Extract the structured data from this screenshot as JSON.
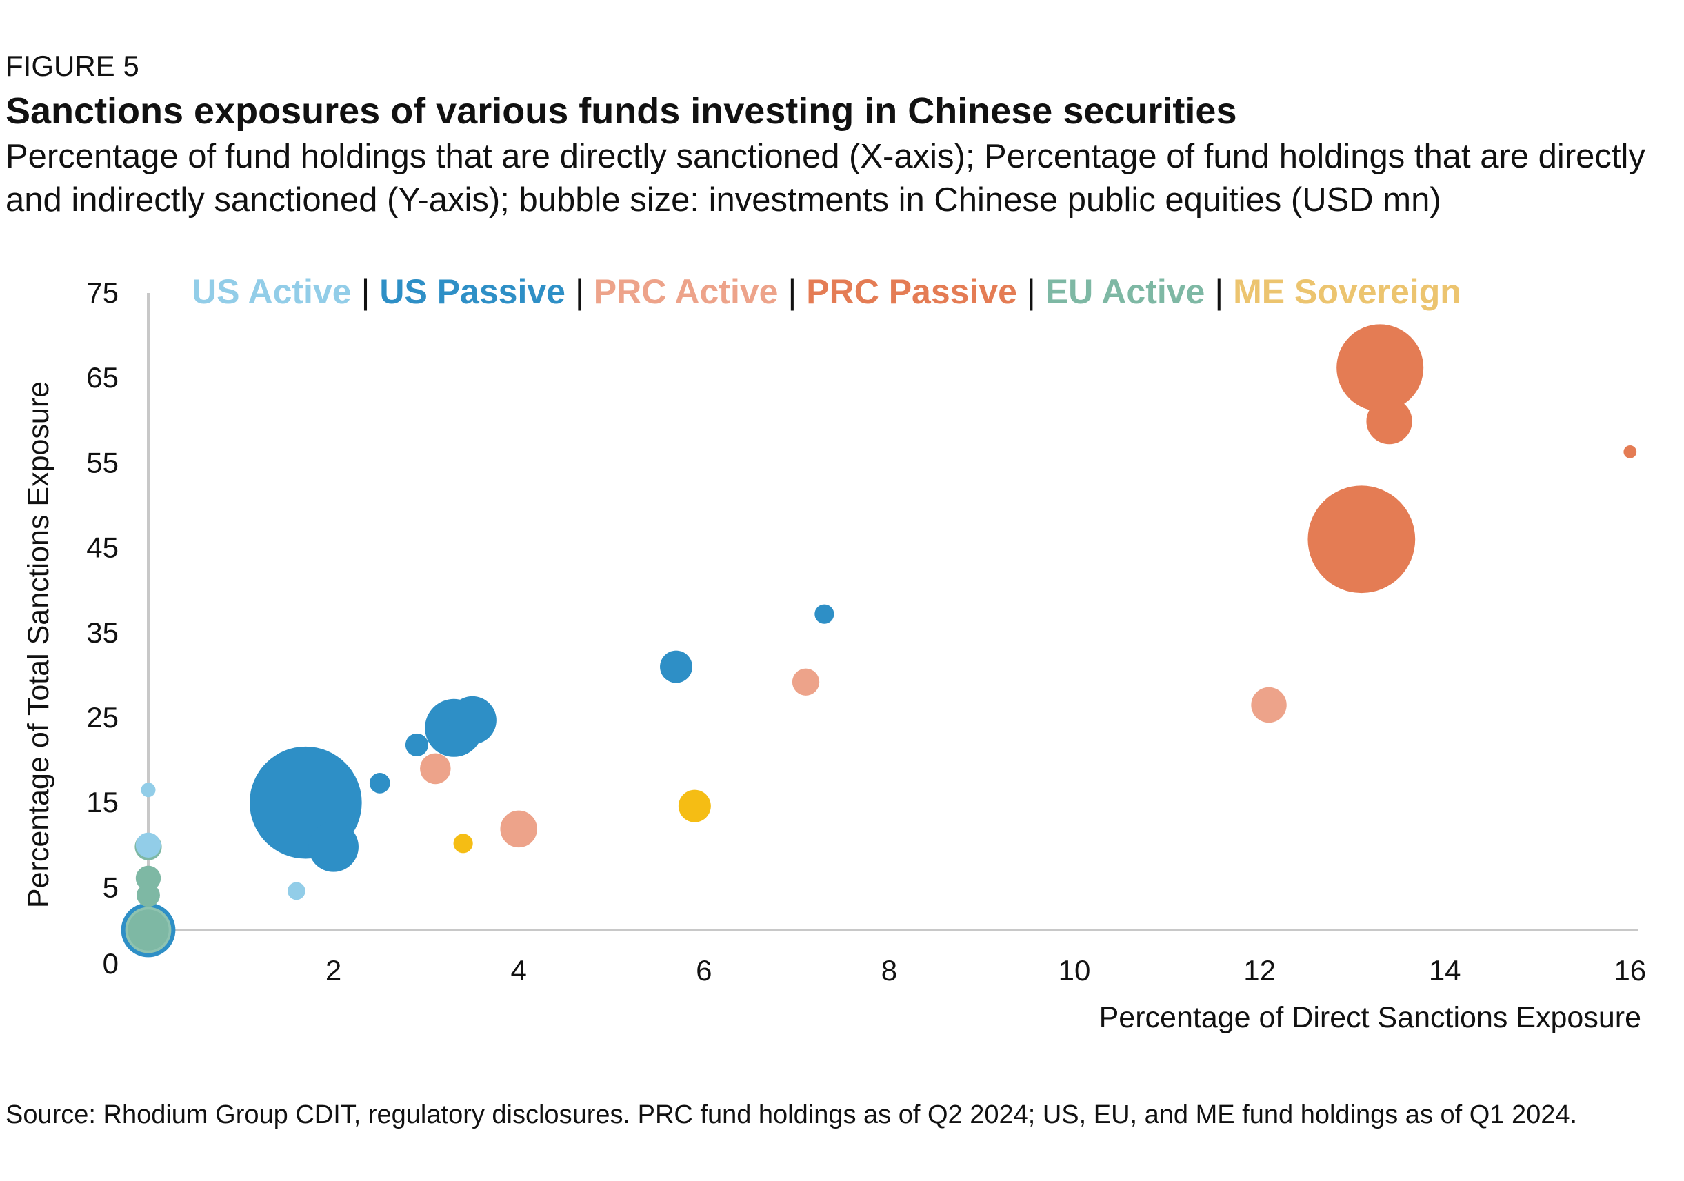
{
  "header": {
    "figure_label": "FIGURE 5",
    "title": "Sanctions exposures of various funds investing in Chinese securities",
    "subtitle": "Percentage of fund holdings that are directly sanctioned (X-axis); Percentage of fund holdings that are directly and indirectly sanctioned (Y-axis); bubble size: investments in Chinese public equities (USD mn)"
  },
  "footer": {
    "source": "Source: Rhodium Group CDIT, regulatory disclosures. PRC fund holdings as of Q2 2024; US, EU, and ME fund holdings as of Q1 2024."
  },
  "chart_data": {
    "type": "scatter",
    "xlabel": "Percentage of Direct Sanctions Exposure",
    "ylabel": "Percentage of Total Sanctions Exposure",
    "xlim": [
      0,
      16.3
    ],
    "ylim": [
      0,
      75
    ],
    "x_ticks": [
      2,
      4,
      6,
      8,
      10,
      12,
      14,
      16
    ],
    "y_ticks": [
      0,
      5,
      15,
      25,
      35,
      45,
      55,
      65,
      75
    ],
    "grid": false,
    "legend_position": "top",
    "legend_separator": "|",
    "series": [
      {
        "name": "US Active",
        "color": "#92cde8",
        "points": [
          {
            "x": 0.0,
            "y": 16.5,
            "size": 1
          },
          {
            "x": 0.0,
            "y": 10.0,
            "size": 3
          },
          {
            "x": 1.6,
            "y": 4.6,
            "size": 1.5
          }
        ]
      },
      {
        "name": "US Passive",
        "color": "#2e8fc6",
        "points": [
          {
            "x": 0.0,
            "y": 0.0,
            "size": 12
          },
          {
            "x": 1.7,
            "y": 15.0,
            "size": 60
          },
          {
            "x": 2.0,
            "y": 9.8,
            "size": 12
          },
          {
            "x": 2.5,
            "y": 17.3,
            "size": 2
          },
          {
            "x": 2.9,
            "y": 21.8,
            "size": 2.5
          },
          {
            "x": 3.3,
            "y": 23.8,
            "size": 16
          },
          {
            "x": 3.5,
            "y": 24.7,
            "size": 11
          },
          {
            "x": 5.7,
            "y": 31.0,
            "size": 5
          },
          {
            "x": 7.3,
            "y": 37.2,
            "size": 1.8
          }
        ]
      },
      {
        "name": "PRC Active",
        "color": "#eda38a",
        "points": [
          {
            "x": 3.1,
            "y": 19.0,
            "size": 4.5
          },
          {
            "x": 4.0,
            "y": 11.9,
            "size": 6.5
          },
          {
            "x": 7.1,
            "y": 29.2,
            "size": 3.5
          },
          {
            "x": 12.1,
            "y": 26.5,
            "size": 6
          }
        ]
      },
      {
        "name": "PRC Passive",
        "color": "#e47c54",
        "points": [
          {
            "x": 13.1,
            "y": 46.0,
            "size": 55
          },
          {
            "x": 13.3,
            "y": 66.2,
            "size": 36
          },
          {
            "x": 13.4,
            "y": 59.9,
            "size": 10
          },
          {
            "x": 16.0,
            "y": 56.3,
            "size": 0.8
          }
        ]
      },
      {
        "name": "EU Active",
        "color": "#7eb8a4",
        "points": [
          {
            "x": 0.0,
            "y": 9.8,
            "size": 3.5
          },
          {
            "x": 0.0,
            "y": 6.1,
            "size": 3
          },
          {
            "x": 0.0,
            "y": 4.1,
            "size": 2.6
          },
          {
            "x": 0.0,
            "y": 0.0,
            "size": 8
          }
        ]
      },
      {
        "name": "ME Sovereign",
        "color": "#f5bd14",
        "legend_color": "#ecc46f",
        "points": [
          {
            "x": 3.4,
            "y": 10.2,
            "size": 1.8
          },
          {
            "x": 5.9,
            "y": 14.6,
            "size": 5
          }
        ]
      }
    ]
  }
}
